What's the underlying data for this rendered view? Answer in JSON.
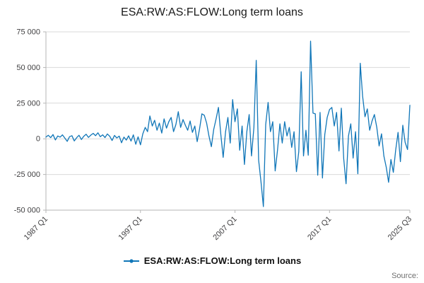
{
  "header": {
    "title": "ESA:RW:AS:FLOW:Long term loans"
  },
  "legend": {
    "items": [
      {
        "label": "ESA:RW:AS:FLOW:Long term loans",
        "color": "#1076b8",
        "marker": "line-with-dot"
      }
    ]
  },
  "footer": {
    "source_label": "Source:"
  },
  "colors": {
    "accent": "#1076b8",
    "grid": "#d9d9d9",
    "axis": "#b6b6b6",
    "tick_text": "#414042",
    "title_text": "#1a1a1a",
    "source_text": "#707070",
    "background": "#ffffff"
  },
  "chart_data": {
    "type": "line",
    "title": "ESA:RW:AS:FLOW:Long term loans",
    "xlabel": "",
    "ylabel": "",
    "frequency": "quarterly",
    "x_range": [
      "1987 Q1",
      "2025 Q3"
    ],
    "x_tick_labels": [
      "1987 Q1",
      "1997 Q1",
      "2007 Q1",
      "2017 Q1",
      "2025 Q3"
    ],
    "x_tick_indices": [
      0,
      40,
      80,
      120,
      154
    ],
    "ylim": [
      -50000,
      75000
    ],
    "y_ticks": [
      -50000,
      -25000,
      0,
      25000,
      50000,
      75000
    ],
    "y_tick_labels": [
      "-50 000",
      "-25 000",
      "0",
      "25 000",
      "50 000",
      "75 000"
    ],
    "grid": "horizontal",
    "legend_position": "bottom",
    "series": [
      {
        "name": "ESA:RW:AS:FLOW:Long term loans",
        "color": "#1076b8",
        "values": [
          1200,
          2500,
          800,
          3000,
          -800,
          2000,
          1200,
          2800,
          500,
          -1800,
          1500,
          2200,
          -1500,
          800,
          2500,
          -500,
          1800,
          3200,
          1000,
          2600,
          3800,
          2200,
          4200,
          1500,
          2800,
          900,
          3400,
          1800,
          -1200,
          2400,
          600,
          1900,
          -2800,
          1200,
          -900,
          2100,
          -1600,
          2800,
          -3800,
          1400,
          -4200,
          3500,
          8000,
          5000,
          16000,
          9000,
          13000,
          6000,
          11000,
          4000,
          14000,
          7500,
          12000,
          15000,
          5000,
          10000,
          19000,
          8000,
          13500,
          9500,
          6000,
          12500,
          4500,
          9000,
          -2000,
          7000,
          17500,
          16500,
          11000,
          2000,
          -5500,
          6500,
          14000,
          22000,
          3000,
          -13000,
          5000,
          15000,
          -3000,
          27500,
          12000,
          21000,
          -8000,
          9000,
          -18000,
          5000,
          17000,
          -12000,
          8000,
          55000,
          -15000,
          -30000,
          -47500,
          10000,
          25500,
          5000,
          12000,
          -22500,
          -8000,
          10500,
          -3000,
          12000,
          2000,
          8000,
          -6000,
          5000,
          -23000,
          -9000,
          47000,
          -12000,
          6000,
          -11500,
          68500,
          18000,
          17500,
          -25500,
          18500,
          -27500,
          3000,
          15000,
          20500,
          22000,
          9000,
          18500,
          -8500,
          21500,
          -14000,
          -31500,
          2000,
          10500,
          -13500,
          5000,
          -24500,
          53000,
          30000,
          15500,
          21000,
          6000,
          12500,
          17000,
          8000,
          -5000,
          3500,
          -12000,
          -20000,
          -30500,
          -14500,
          -23500,
          -8000,
          4500,
          -16000,
          9500,
          -2500,
          -7500,
          23500
        ]
      }
    ]
  }
}
